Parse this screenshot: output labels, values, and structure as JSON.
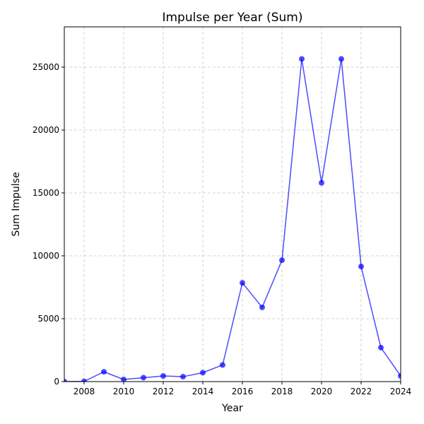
{
  "chart_data": {
    "type": "line",
    "title": "Impulse per Year (Sum)",
    "xlabel": "Year",
    "ylabel": "Sum Impulse",
    "xlim": [
      2007,
      2024
    ],
    "ylim": [
      0,
      28200
    ],
    "xticks": [
      2008,
      2010,
      2012,
      2014,
      2016,
      2018,
      2020,
      2022,
      2024
    ],
    "xtick_labels": [
      "2008",
      "2010",
      "2012",
      "2014",
      "2016",
      "2018",
      "2020",
      "2022",
      "2024"
    ],
    "yticks": [
      0,
      5000,
      10000,
      15000,
      20000,
      25000
    ],
    "ytick_labels": [
      "0",
      "5000",
      "10000",
      "15000",
      "20000",
      "25000"
    ],
    "grid": true,
    "line_color": "#0000ff",
    "x": [
      2007,
      2008,
      2009,
      2010,
      2011,
      2012,
      2013,
      2014,
      2015,
      2016,
      2017,
      2018,
      2019,
      2020,
      2021,
      2022,
      2023,
      2024
    ],
    "series": [
      {
        "values": [
          10,
          20,
          780,
          170,
          310,
          450,
          390,
          710,
          1320,
          7850,
          5900,
          9650,
          25650,
          15800,
          25650,
          9150,
          2700,
          450
        ]
      }
    ]
  }
}
